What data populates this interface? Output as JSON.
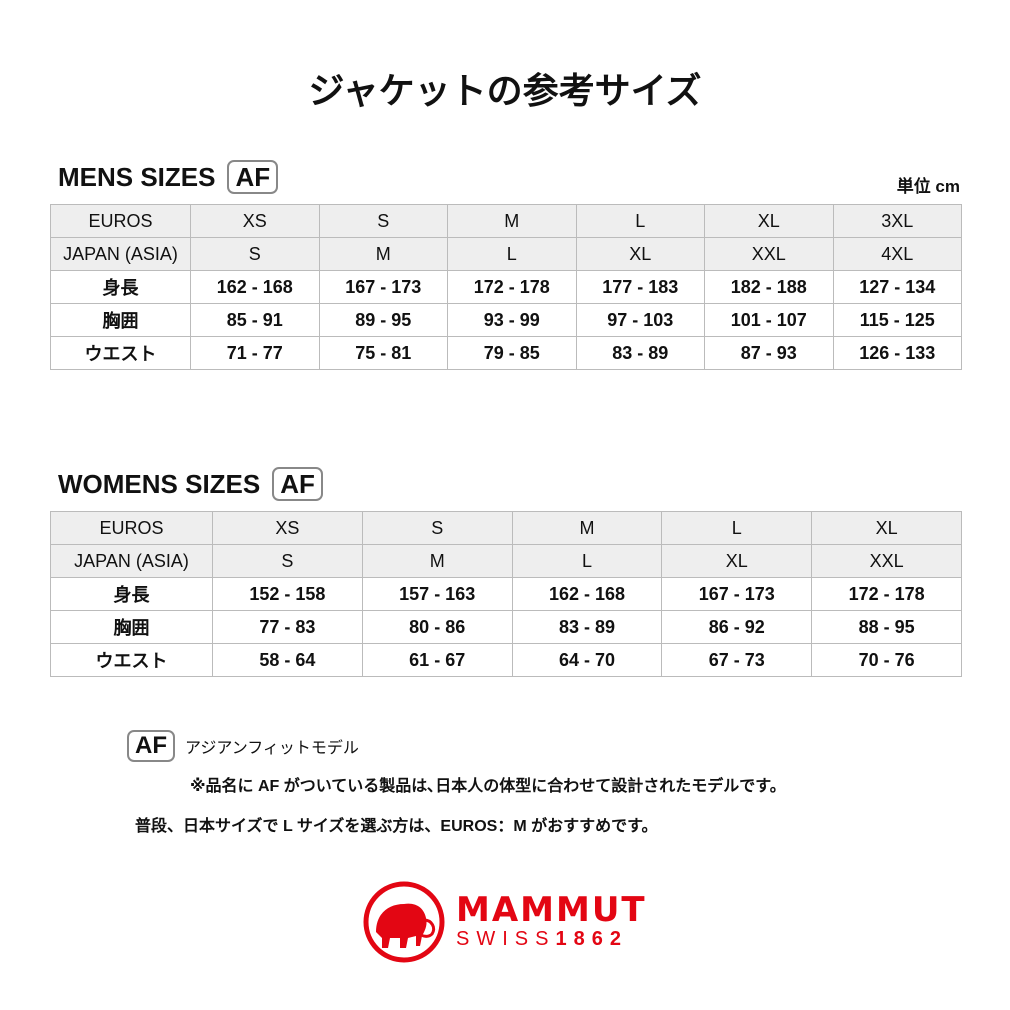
{
  "title": "ジャケットの参考サイズ",
  "unit": "単位 cm",
  "af_badge": "AF",
  "mens": {
    "heading": "MENS SIZES",
    "rows": [
      [
        "EUROS",
        "XS",
        "S",
        "M",
        "L",
        "XL",
        "3XL"
      ],
      [
        "JAPAN (ASIA)",
        "S",
        "M",
        "L",
        "XL",
        "XXL",
        "4XL"
      ],
      [
        "身長",
        "162 - 168",
        "167 - 173",
        "172 - 178",
        "177 - 183",
        "182 - 188",
        "127 - 134"
      ],
      [
        "胸囲",
        "85 - 91",
        "89 - 95",
        "93 - 99",
        "97 - 103",
        "101 - 107",
        "115 - 125"
      ],
      [
        "ウエスト",
        "71 - 77",
        "75 - 81",
        "79 - 85",
        "83 - 89",
        "87 - 93",
        "126 - 133"
      ]
    ]
  },
  "womens": {
    "heading": "WOMENS SIZES",
    "rows": [
      [
        "EUROS",
        "XS",
        "S",
        "M",
        "L",
        "XL"
      ],
      [
        "JAPAN (ASIA)",
        "S",
        "M",
        "L",
        "XL",
        "XXL"
      ],
      [
        "身長",
        "152 - 158",
        "157 - 163",
        "162 - 168",
        "167 - 173",
        "172 - 178"
      ],
      [
        "胸囲",
        "77 - 83",
        "80 - 86",
        "83 - 89",
        "86 - 92",
        "88 - 95"
      ],
      [
        "ウエスト",
        "58 - 64",
        "61 - 67",
        "64 - 70",
        "67 - 73",
        "70 - 76"
      ]
    ]
  },
  "notes": {
    "af_label": "アジアンフィットモデル",
    "af_desc": "※品名に AF がついている製品は､日本人の体型に合わせて設計されたモデルです。",
    "recommend": "普段、日本サイズで L サイズを選ぶ方は、EUROS：M がおすすめです。"
  },
  "logo": {
    "brand": "MAMMUT",
    "sub_a": "SWISS",
    "sub_b": "1862",
    "color": "#e30613"
  }
}
